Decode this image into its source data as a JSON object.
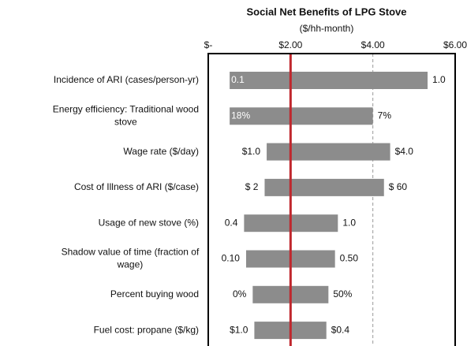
{
  "chart_data": {
    "type": "tornado",
    "title": "Social Net Benefits of LPG Stove",
    "subtitle": "($/hh-month)",
    "categories": [
      [
        "Incidence of ARI (cases/person-yr)"
      ],
      [
        "Energy efficiency: Traditional wood",
        "stove"
      ],
      [
        "Wage rate ($/day)"
      ],
      [
        "Cost of Illness of ARI ($/case)"
      ],
      [
        "Usage of new stove (%)"
      ],
      [
        "Shadow value of time (fraction of",
        "wage)"
      ],
      [
        "Percent buying wood"
      ],
      [
        "Fuel cost: propane ($/kg)"
      ]
    ],
    "lows": [
      0.52,
      0.52,
      1.42,
      1.37,
      0.87,
      0.92,
      1.08,
      1.12
    ],
    "highs": [
      5.33,
      4.0,
      4.42,
      4.27,
      3.15,
      3.08,
      2.92,
      2.87
    ],
    "low_labels": [
      "0.1",
      "18%",
      "$1.0",
      "$ 2",
      "0.4",
      "0.10",
      "0%",
      "$1.0"
    ],
    "high_labels": [
      "1.0",
      "7%",
      "$4.0",
      "$ 60",
      "1.0",
      "0.50",
      "50%",
      "$0.4"
    ],
    "base": 2.0,
    "base_color": "#c0272d",
    "color": "#8c8c8c",
    "xlim": [
      0,
      6
    ],
    "xticks": [
      {
        "value": 0,
        "label": "$-"
      },
      {
        "value": 2,
        "label": "$2.00"
      },
      {
        "value": 4,
        "label": "$4.00"
      },
      {
        "value": 6,
        "label": "$6.00"
      }
    ],
    "grid": true
  }
}
